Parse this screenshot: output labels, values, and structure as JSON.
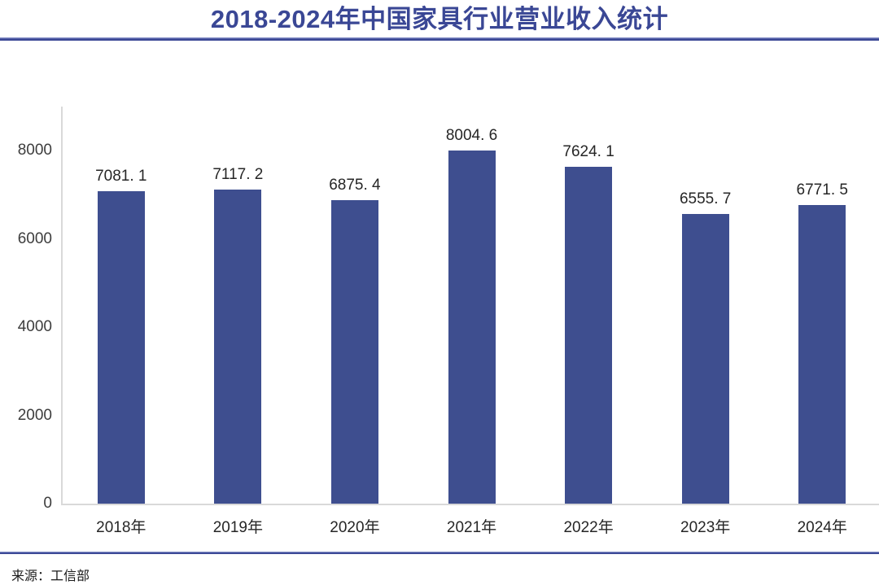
{
  "page": {
    "title": "2018-2024年中国家具行业营业收入统计",
    "source": "来源：工信部"
  },
  "chart_data": {
    "type": "bar",
    "title": "2018-2024年中国家具行业营业收入统计",
    "categories": [
      "2018年",
      "2019年",
      "2020年",
      "2021年",
      "2022年",
      "2023年",
      "2024年"
    ],
    "values": [
      7081.1,
      7117.2,
      6875.4,
      8004.6,
      7624.1,
      6555.7,
      6771.5
    ],
    "value_labels": [
      "7081. 1",
      "7117. 2",
      "6875. 4",
      "8004. 6",
      "7624. 1",
      "6555. 7",
      "6771. 5"
    ],
    "xlabel": "",
    "ylabel": "",
    "yticks": [
      0,
      2000,
      4000,
      6000,
      8000
    ],
    "ylim": [
      0,
      8960
    ],
    "grid": false,
    "legend": "none",
    "source": "来源：工信部"
  },
  "colors": {
    "accent_blue": "#3A4795",
    "bar_blue": "#3E4E8F",
    "axis_gray": "#D9D9D9",
    "label_text": "#262626"
  }
}
